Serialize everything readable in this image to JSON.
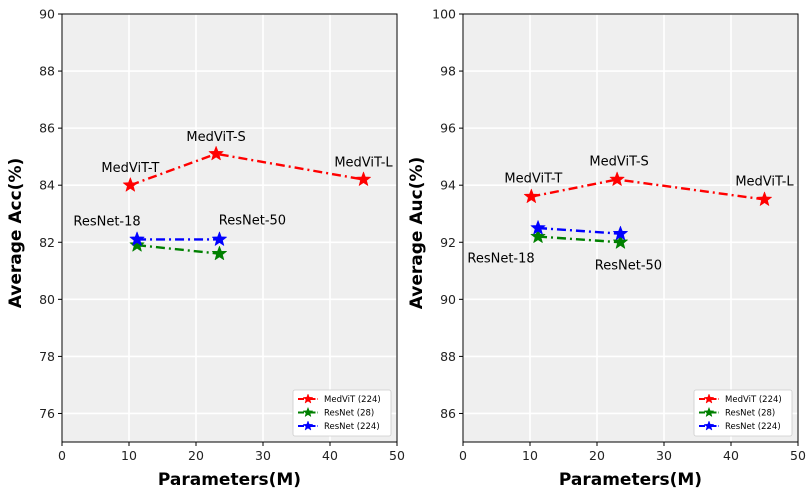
{
  "chart_data": [
    {
      "type": "line",
      "title": "",
      "xlabel": "Parameters(M)",
      "ylabel": "Average Acc(%)",
      "xlim": [
        0,
        50
      ],
      "ylim": [
        75,
        90
      ],
      "xticks": [
        0,
        10,
        20,
        30,
        40,
        50
      ],
      "yticks": [
        76,
        78,
        80,
        82,
        84,
        86,
        88,
        90
      ],
      "grid": true,
      "legend_position": "bottom-right",
      "series": [
        {
          "name": "MedViT (224)",
          "color": "#ff0000",
          "dash": "dashdot",
          "points": [
            {
              "x": 10.2,
              "y": 84.0
            },
            {
              "x": 23.0,
              "y": 85.1
            },
            {
              "x": 45.0,
              "y": 84.2
            }
          ]
        },
        {
          "name": "ResNet (28)",
          "color": "#008000",
          "dash": "dashdot",
          "points": [
            {
              "x": 11.2,
              "y": 81.9
            },
            {
              "x": 23.5,
              "y": 81.6
            }
          ]
        },
        {
          "name": "ResNet (224)",
          "color": "#0000ff",
          "dash": "dashdot",
          "points": [
            {
              "x": 11.2,
              "y": 82.1
            },
            {
              "x": 23.5,
              "y": 82.1
            }
          ]
        }
      ],
      "annotations": [
        {
          "text": "MedViT-T",
          "x": 10.2,
          "y": 84.0,
          "dx": 0,
          "dy": -13
        },
        {
          "text": "MedViT-S",
          "x": 23.0,
          "y": 85.1,
          "dx": 0,
          "dy": -13
        },
        {
          "text": "MedViT-L",
          "x": 45.0,
          "y": 84.2,
          "dx": 0,
          "dy": -13
        },
        {
          "text": "ResNet-18",
          "x": 11.2,
          "y": 82.1,
          "dx": -30,
          "dy": -14
        },
        {
          "text": "ResNet-50",
          "x": 23.5,
          "y": 82.1,
          "dx": 33,
          "dy": -15
        }
      ]
    },
    {
      "type": "line",
      "title": "",
      "xlabel": "Parameters(M)",
      "ylabel": "Average Auc(%)",
      "xlim": [
        0,
        50
      ],
      "ylim": [
        85,
        100
      ],
      "xticks": [
        0,
        10,
        20,
        30,
        40,
        50
      ],
      "yticks": [
        86,
        88,
        90,
        92,
        94,
        96,
        98,
        100
      ],
      "grid": true,
      "legend_position": "bottom-right",
      "series": [
        {
          "name": "MedViT (224)",
          "color": "#ff0000",
          "dash": "dashdot",
          "points": [
            {
              "x": 10.2,
              "y": 93.6
            },
            {
              "x": 23.0,
              "y": 94.2
            },
            {
              "x": 45.0,
              "y": 93.5
            }
          ]
        },
        {
          "name": "ResNet (28)",
          "color": "#008000",
          "dash": "dashdot",
          "points": [
            {
              "x": 11.2,
              "y": 92.2
            },
            {
              "x": 23.5,
              "y": 92.0
            }
          ]
        },
        {
          "name": "ResNet (224)",
          "color": "#0000ff",
          "dash": "dashdot",
          "points": [
            {
              "x": 11.2,
              "y": 92.5
            },
            {
              "x": 23.5,
              "y": 92.3
            }
          ]
        }
      ],
      "annotations": [
        {
          "text": "MedViT-T",
          "x": 10.2,
          "y": 93.6,
          "dx": 2,
          "dy": -14
        },
        {
          "text": "MedViT-S",
          "x": 23.0,
          "y": 94.2,
          "dx": 2,
          "dy": -14
        },
        {
          "text": "MedViT-L",
          "x": 45.0,
          "y": 93.5,
          "dx": 0,
          "dy": -14
        },
        {
          "text": "ResNet-18",
          "x": 11.2,
          "y": 92.2,
          "dx": -37,
          "dy": 26
        },
        {
          "text": "ResNet-50",
          "x": 23.5,
          "y": 92.0,
          "dx": 8,
          "dy": 27
        }
      ]
    }
  ]
}
